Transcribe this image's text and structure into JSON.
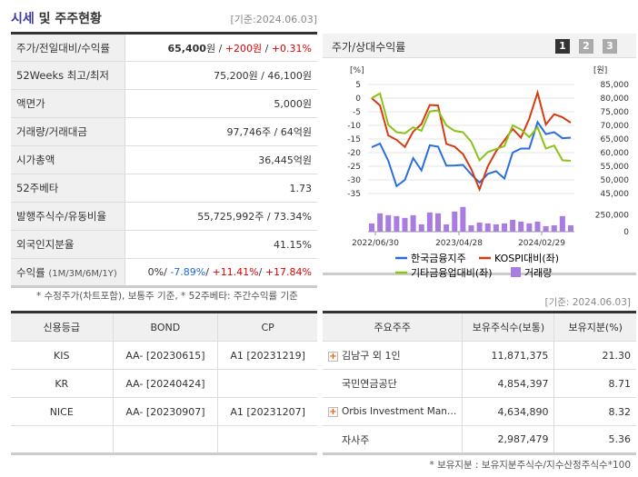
{
  "header": {
    "title_a": "시세",
    "title_b": " 및 주주현황",
    "base_date": "[기준:2024.06.03]"
  },
  "info": [
    {
      "label": "주가/전일대비/수익률"
    },
    {
      "label": "52Weeks 최고/최저",
      "value": "75,200원 / 46,100원"
    },
    {
      "label": "액면가",
      "value": "5,000원"
    },
    {
      "label": "거래량/거래대금",
      "value": "97,746주 / 64억원"
    },
    {
      "label": "시가총액",
      "value": "36,445억원"
    },
    {
      "label": "52주베타",
      "value": "1.73"
    },
    {
      "label": "발행주식수/유동비율",
      "value": "55,725,992주 / 73.34%"
    },
    {
      "label": "외국인지분율",
      "value": "41.15%"
    },
    {
      "label": "수익률",
      "label_sub": "(1M/3M/6M/1Y)"
    }
  ],
  "price": {
    "price": "65,400",
    "unit": "원",
    "sep": " / ",
    "change": "+200원",
    "rate": "+0.31%"
  },
  "returns": {
    "r1m": "0%",
    "r3m": "-7.89%",
    "r6m": "+11.41%",
    "r1y": "+17.84%"
  },
  "note": "* 수정주가(차트포함), 보통주 기준, * 52주베타: 주간수익률 기준",
  "chart_panel": {
    "title": "주가/상대수익률",
    "pages": [
      "1",
      "2",
      "3"
    ],
    "active_page": "1"
  },
  "chart_data": {
    "type": "line",
    "left_unit": "[%]",
    "right_unit": "[원]",
    "left_ticks": [
      "5",
      "0",
      "-5",
      "-10",
      "-15",
      "-20",
      "-25",
      "-30",
      "-35"
    ],
    "right_ticks": [
      "85,000",
      "80,000",
      "75,000",
      "70,000",
      "65,000",
      "60,000",
      "55,000",
      "50,000",
      "45,000"
    ],
    "ylim_left": [
      -35,
      5
    ],
    "ylim_right": [
      45000,
      85000
    ],
    "volume_ticks": [
      "250,000",
      "0"
    ],
    "x_ticks": [
      "2022/06/30",
      "2023/04/28",
      "2024/02/29"
    ],
    "series": [
      {
        "name": "한국금융지주",
        "color": "#2a6ee0",
        "values": [
          -18,
          -16.7,
          -23,
          -32.3,
          -30,
          -22,
          -26.5,
          -17.3,
          -17.8,
          -24.8,
          -24.7,
          -24.5,
          -28,
          -31,
          -27.8,
          -26.8,
          -29.5,
          -20,
          -18.5,
          -18.5,
          -8.8,
          -13.2,
          -12.5,
          -14.7,
          -14.5
        ]
      },
      {
        "name": "KOSPI대비(좌)",
        "color": "#d63a10",
        "values": [
          0,
          -2.7,
          -13.7,
          -15.3,
          -17.9,
          -12.3,
          -9.5,
          -2.5,
          -2.7,
          -16.8,
          -17.8,
          -20.5,
          -26,
          -33.5,
          -25,
          -19.5,
          -15.5,
          -11.3,
          -14.5,
          -7.5,
          2,
          -9.7,
          -5.9,
          -7,
          -9
        ]
      },
      {
        "name": "기타금융업대비(좌)",
        "color": "#8cc21a",
        "values": [
          0,
          1.7,
          -9.8,
          -12.5,
          -12.9,
          -10.7,
          -12,
          -4.9,
          -4.5,
          -10,
          -12,
          -12.5,
          -16,
          -22.8,
          -19.8,
          -18.7,
          -17.6,
          -10,
          -11.5,
          -14.3,
          -10.7,
          -18.5,
          -17.4,
          -22.8,
          -23
        ]
      }
    ],
    "volume": {
      "name": "거래량",
      "color": "#a97de0",
      "values": [
        123000,
        273000,
        245000,
        232000,
        205000,
        245000,
        109000,
        286000,
        273000,
        109000,
        300000,
        368000,
        95000,
        136000,
        123000,
        109000,
        123000,
        177000,
        150000,
        123000,
        150000,
        82000,
        95000,
        232000,
        95000
      ]
    }
  },
  "credit": {
    "headers": [
      "신용등급",
      "BOND",
      "CP"
    ],
    "rows": [
      [
        "KIS",
        "AA-  [20230615]",
        "A1  [20231219]"
      ],
      [
        "KR",
        "AA-  [20240424]",
        ""
      ],
      [
        "NICE",
        "AA-  [20230907]",
        "A1  [20231207]"
      ],
      [
        "",
        "",
        ""
      ]
    ]
  },
  "shareholders": {
    "base_date": "[기준: 2024.06.03]",
    "headers": [
      "주요주주",
      "보유주식수(보통)",
      "보유지분(%)"
    ],
    "rows": [
      {
        "name": "김남구 외 1인",
        "shares": "11,871,375",
        "pct": "21.30",
        "expand": true
      },
      {
        "name": "국민연금공단",
        "shares": "4,854,397",
        "pct": "8.71",
        "expand": false
      },
      {
        "name": "Orbis Investment Man…",
        "shares": "4,634,890",
        "pct": "8.32",
        "expand": true
      },
      {
        "name": "자사주",
        "shares": "2,987,479",
        "pct": "5.36",
        "expand": false
      }
    ],
    "note": "* 보유지분 : 보유지분주식수/지수산정주식수*100"
  }
}
